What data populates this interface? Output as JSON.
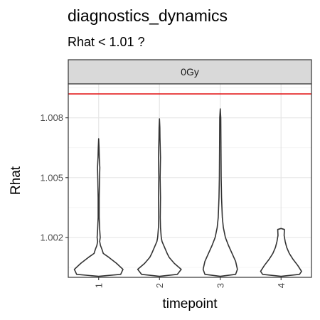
{
  "chart_data": {
    "type": "violin",
    "title": "diagnostics_dynamics",
    "subtitle": "Rhat < 1.01 ?",
    "facet": "0Gy",
    "xlabel": "timepoint",
    "ylabel": "Rhat",
    "categories": [
      "1",
      "2",
      "3",
      "4"
    ],
    "y_ticks": [
      1.002,
      1.005,
      1.008
    ],
    "y_tick_labels": [
      "1.002",
      "1.005",
      "1.008"
    ],
    "ylim": [
      1.0,
      1.0097
    ],
    "reference_line": {
      "y": 1.0092,
      "color": "#e41a1c"
    },
    "grid": true,
    "theme": "bw",
    "violins": [
      {
        "x": "1",
        "y_min": 1.00005,
        "y_max": 1.00695,
        "profile": [
          [
            1.00005,
            0.0
          ],
          [
            1.00015,
            0.86
          ],
          [
            1.0004,
            0.95
          ],
          [
            1.0007,
            0.7
          ],
          [
            1.001,
            0.4
          ],
          [
            1.0012,
            0.18
          ],
          [
            1.0014,
            0.13
          ],
          [
            1.0016,
            0.07
          ],
          [
            1.0018,
            0.04
          ],
          [
            1.002,
            0.06
          ],
          [
            1.0024,
            0.04
          ],
          [
            1.003,
            0.02
          ],
          [
            1.004,
            0.02
          ],
          [
            1.005,
            0.035
          ],
          [
            1.0055,
            0.045
          ],
          [
            1.006,
            0.025
          ],
          [
            1.0065,
            0.015
          ],
          [
            1.00695,
            0.0
          ]
        ]
      },
      {
        "x": "2",
        "y_min": 1.00005,
        "y_max": 1.00795,
        "profile": [
          [
            1.00005,
            0.0
          ],
          [
            1.00015,
            0.7
          ],
          [
            1.0004,
            0.85
          ],
          [
            1.0007,
            0.58
          ],
          [
            1.001,
            0.38
          ],
          [
            1.0012,
            0.3
          ],
          [
            1.0015,
            0.2
          ],
          [
            1.0018,
            0.1
          ],
          [
            1.002,
            0.07
          ],
          [
            1.0025,
            0.04
          ],
          [
            1.003,
            0.03
          ],
          [
            1.004,
            0.04
          ],
          [
            1.005,
            0.025
          ],
          [
            1.006,
            0.04
          ],
          [
            1.007,
            0.02
          ],
          [
            1.0075,
            0.015
          ],
          [
            1.00795,
            0.0
          ]
        ]
      },
      {
        "x": "3",
        "y_min": 1.00005,
        "y_max": 1.00845,
        "profile": [
          [
            1.00005,
            0.0
          ],
          [
            1.00015,
            0.6
          ],
          [
            1.0004,
            0.67
          ],
          [
            1.0008,
            0.6
          ],
          [
            1.0012,
            0.46
          ],
          [
            1.0016,
            0.32
          ],
          [
            1.002,
            0.2
          ],
          [
            1.0025,
            0.12
          ],
          [
            1.003,
            0.08
          ],
          [
            1.004,
            0.05
          ],
          [
            1.005,
            0.035
          ],
          [
            1.006,
            0.03
          ],
          [
            1.007,
            0.025
          ],
          [
            1.008,
            0.02
          ],
          [
            1.00845,
            0.0
          ]
        ]
      },
      {
        "x": "4",
        "y_min": 1.00005,
        "y_max": 1.00245,
        "profile": [
          [
            1.00005,
            0.0
          ],
          [
            1.00015,
            0.72
          ],
          [
            1.0003,
            0.8
          ],
          [
            1.0006,
            0.65
          ],
          [
            1.0009,
            0.47
          ],
          [
            1.0012,
            0.32
          ],
          [
            1.0015,
            0.22
          ],
          [
            1.0018,
            0.16
          ],
          [
            1.0021,
            0.12
          ],
          [
            1.0024,
            0.13
          ],
          [
            1.00245,
            0.0
          ]
        ]
      }
    ]
  }
}
